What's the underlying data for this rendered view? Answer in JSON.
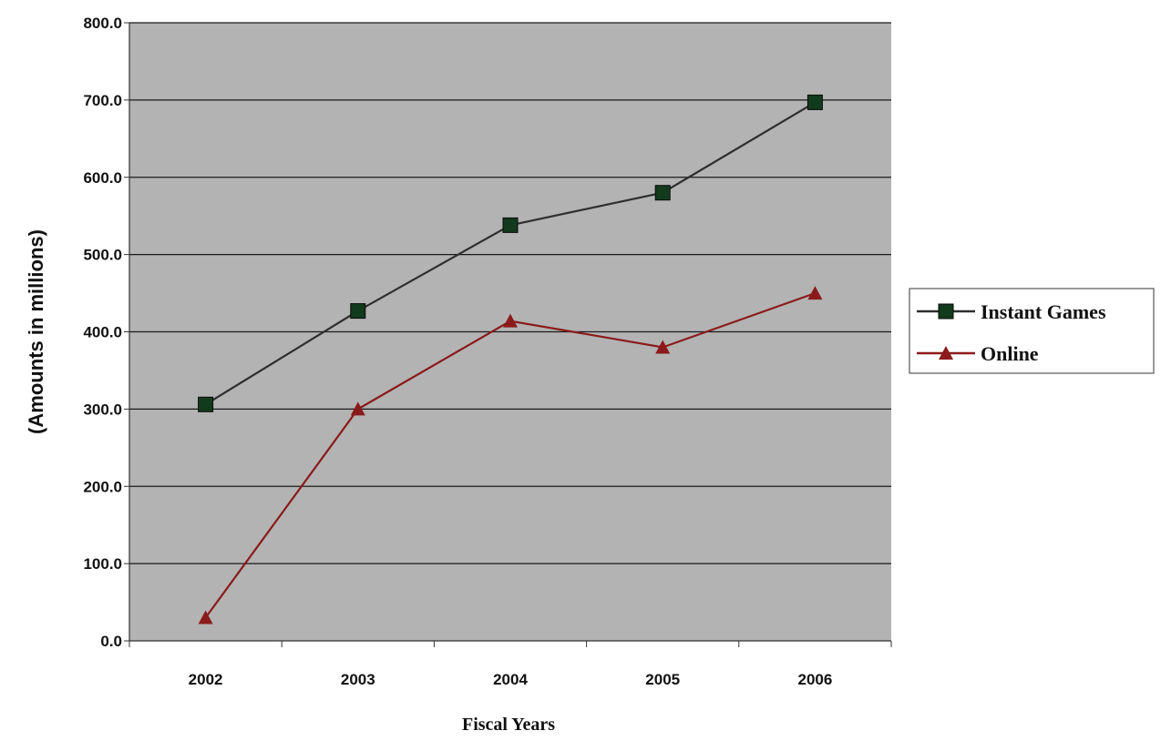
{
  "chart_data": {
    "type": "line",
    "title": "",
    "xlabel": "Fiscal Years",
    "ylabel": "(Amounts in millions)",
    "categories": [
      "2002",
      "2003",
      "2004",
      "2005",
      "2006"
    ],
    "ylim": [
      0,
      800
    ],
    "yticks": [
      "0.0",
      "100.0",
      "200.0",
      "300.0",
      "400.0",
      "500.0",
      "600.0",
      "700.0",
      "800.0"
    ],
    "grid": true,
    "legend_position": "right",
    "plot_background": "#b3b3b3",
    "series": [
      {
        "name": "Instant Games",
        "values": [
          306,
          427,
          538,
          580,
          697
        ],
        "color": "#2f2f2f",
        "marker_color": "#123a1c",
        "marker": "square"
      },
      {
        "name": "Online",
        "values": [
          30,
          300,
          414,
          380,
          450
        ],
        "color": "#8b1a1a",
        "marker_color": "#8b1a1a",
        "marker": "triangle"
      }
    ]
  }
}
